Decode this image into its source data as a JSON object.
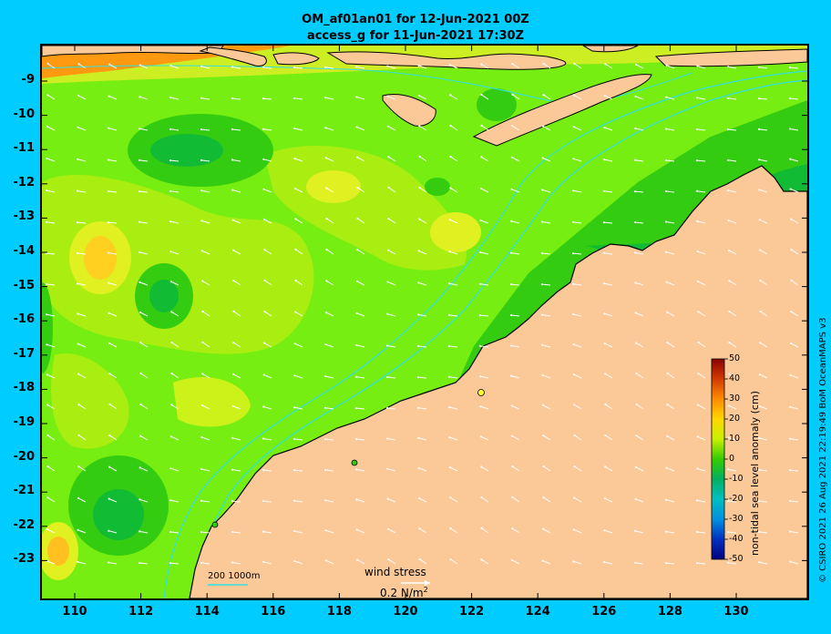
{
  "title_line1": "OM_af01an01 for 12-Jun-2021 00Z",
  "title_line2": "access_g for 11-Jun-2021 17:30Z",
  "lat_labels": [
    "-9",
    "-10",
    "-11",
    "-12",
    "-13",
    "-14",
    "-15",
    "-16",
    "-17",
    "-18",
    "-19",
    "-20",
    "-21",
    "-22",
    "-23"
  ],
  "lon_labels": [
    "110",
    "112",
    "114",
    "116",
    "118",
    "120",
    "122",
    "124",
    "126",
    "128",
    "130"
  ],
  "colorbar": {
    "label": "non-tidal sea level anomaly (cm)",
    "ticks": [
      "50",
      "40",
      "30",
      "20",
      "10",
      "0",
      "-10",
      "-20",
      "-30",
      "-40",
      "-50"
    ]
  },
  "legend": {
    "wind_title": "wind stress",
    "wind_value": "0.2 N/m",
    "wind_exp": "2",
    "contour_key": "200  1000m"
  },
  "credit": "© CSIRO 2021  26 Aug 2021 22:19:49 BoM OceanMAPS v3",
  "colors": {
    "background": "#00ccff",
    "land": "#fbc997",
    "coast": "#000000",
    "isobath": "#33e0e0"
  },
  "map_data": {
    "lon_range": [
      109,
      132
    ],
    "lat_range": [
      -8.1,
      -24
    ],
    "field": "non-tidal sea level anomaly (cm)",
    "scale_range": [
      -50,
      50
    ]
  }
}
